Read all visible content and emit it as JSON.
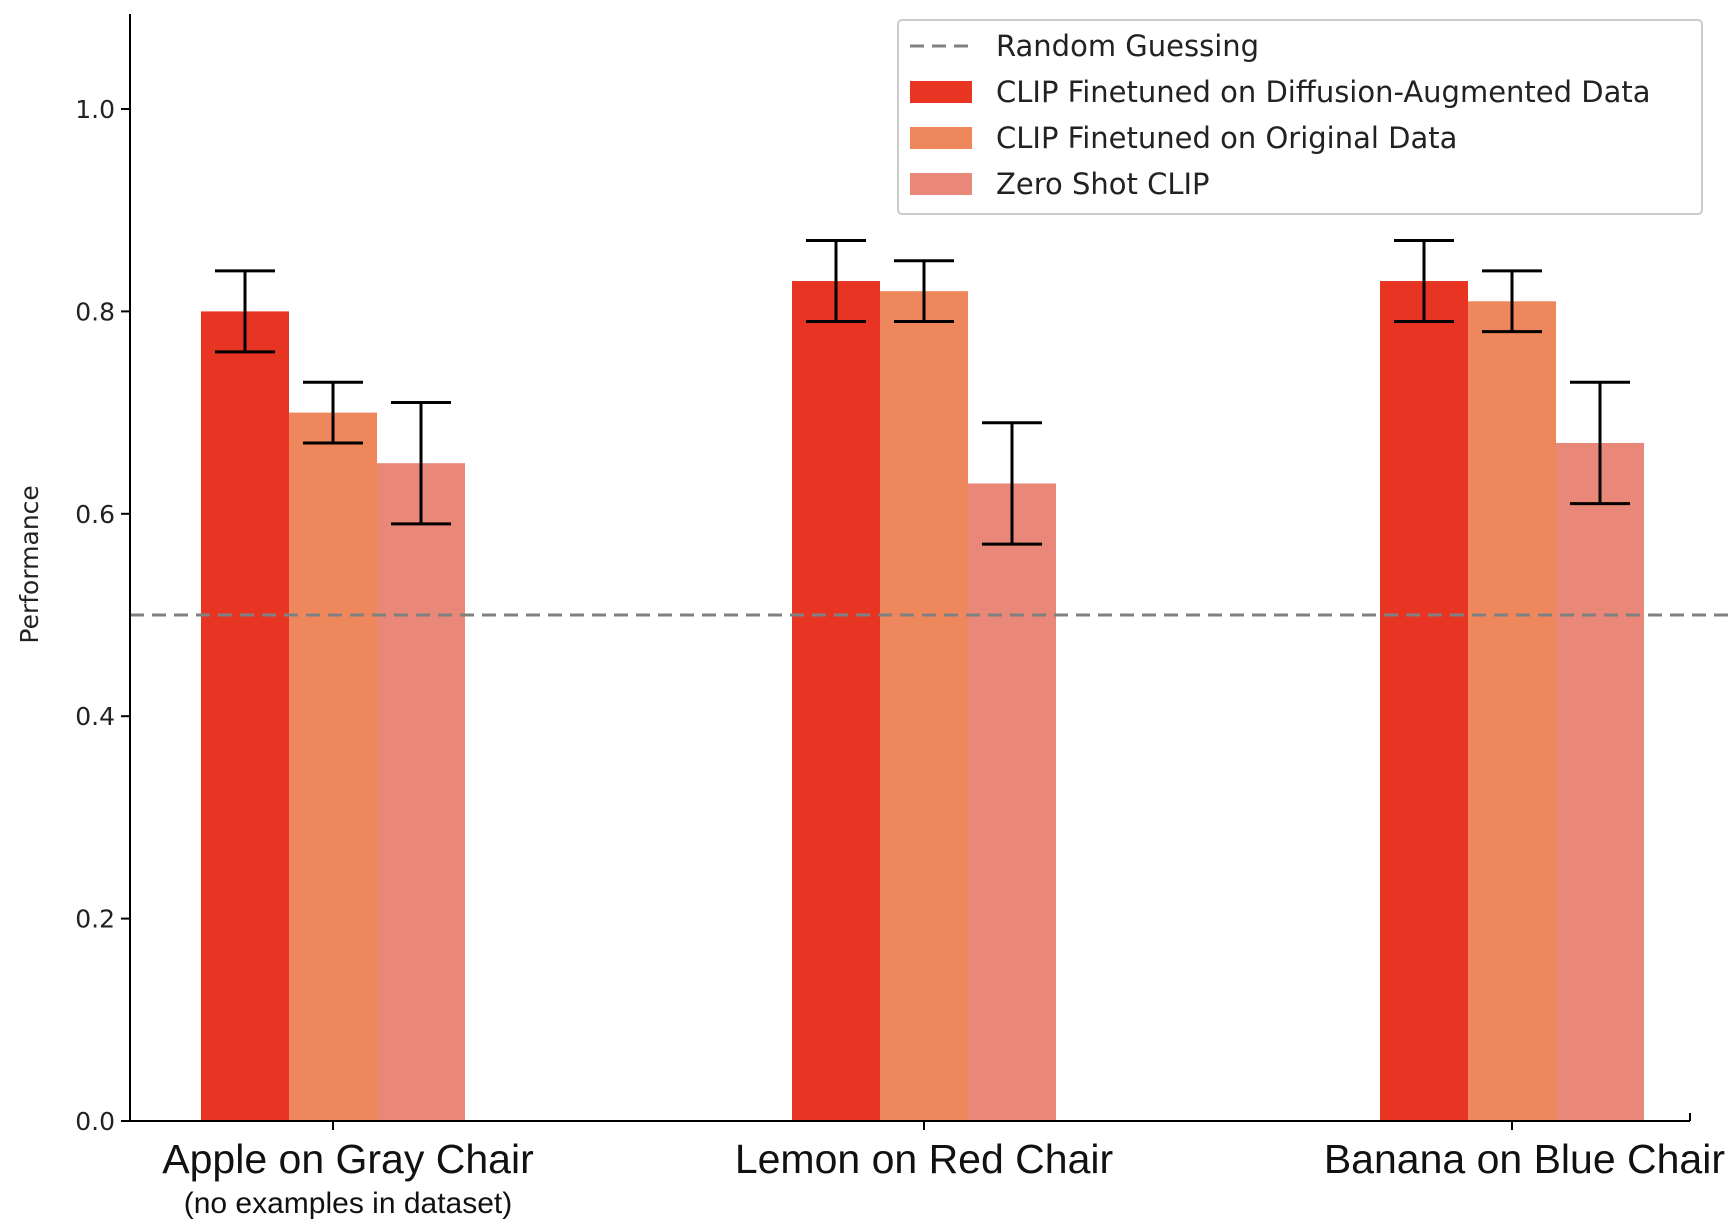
{
  "chart_data": {
    "type": "bar",
    "ylabel": "Performance",
    "xlabel": "",
    "ylim": [
      0,
      1.1
    ],
    "yticks": [
      "0.0",
      "0.2",
      "0.4",
      "0.6",
      "0.8",
      "1.0"
    ],
    "categories": [
      "Apple on Gray Chair",
      "Lemon on Red Chair",
      "Banana on Blue Chair"
    ],
    "category_sublabels": [
      "(no examples in dataset)",
      "",
      ""
    ],
    "series": [
      {
        "name": "CLIP Finetuned on Diffusion-Augmented Data",
        "color": "#E83523",
        "values": [
          0.8,
          0.83,
          0.83
        ],
        "err_low": [
          0.76,
          0.79,
          0.79
        ],
        "err_high": [
          0.84,
          0.87,
          0.87
        ]
      },
      {
        "name": "CLIP Finetuned on Original Data",
        "color": "#EE885C",
        "values": [
          0.7,
          0.82,
          0.81
        ],
        "err_low": [
          0.67,
          0.79,
          0.78
        ],
        "err_high": [
          0.73,
          0.85,
          0.84
        ]
      },
      {
        "name": "Zero Shot CLIP",
        "color": "#E98778",
        "values": [
          0.65,
          0.63,
          0.67
        ],
        "err_low": [
          0.59,
          0.57,
          0.61
        ],
        "err_high": [
          0.71,
          0.69,
          0.73
        ]
      }
    ],
    "reference_line": {
      "name": "Random Guessing",
      "value": 0.5,
      "color": "#808080",
      "style": "dashed"
    },
    "legend_position": "top-right",
    "grid": false
  }
}
